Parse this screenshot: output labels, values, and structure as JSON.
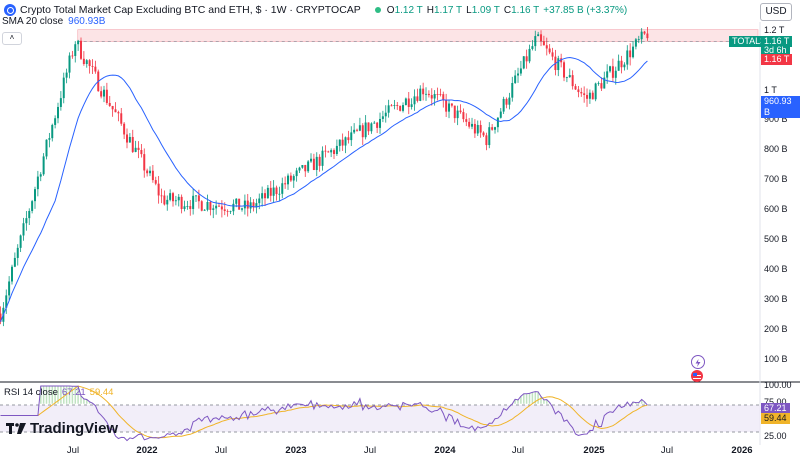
{
  "header": {
    "title": "Crypto Total Market Cap Excluding BTC and ETH, $ · 1W · CRYPTOCAP",
    "ohlc": [
      {
        "key": "O",
        "value": "1.12 T"
      },
      {
        "key": "H",
        "value": "1.17 T"
      },
      {
        "key": "L",
        "value": "1.09 T"
      },
      {
        "key": "C",
        "value": "1.16 T"
      }
    ],
    "change": "+37.85 B (+3.37%)",
    "currency_button": "USD"
  },
  "sma": {
    "label": "SMA 20 close",
    "value": "960.93B"
  },
  "collapse_button": "˄",
  "price_axis": [
    "1.2 T",
    "1 T",
    "900 B",
    "800 B",
    "700 B",
    "600 B",
    "500 B",
    "400 B",
    "300 B",
    "200 B",
    "100 B"
  ],
  "tags": {
    "symbol": "TOTAL3",
    "last": "1.16 T",
    "countdown": "3d 6h",
    "resistance": "1.16 T",
    "sma": "960.93 B",
    "rsi": "67.21",
    "rsi_ma": "59.44"
  },
  "rsi": {
    "label": "RSI 14 close",
    "value": "67.21",
    "ma_value": "59.44",
    "axis": [
      "100.00",
      "75.00",
      "25.00"
    ]
  },
  "time_axis": [
    {
      "label": "Jul",
      "year": false
    },
    {
      "label": "2022",
      "year": true
    },
    {
      "label": "Jul",
      "year": false
    },
    {
      "label": "2023",
      "year": true
    },
    {
      "label": "Jul",
      "year": false
    },
    {
      "label": "2024",
      "year": true
    },
    {
      "label": "Jul",
      "year": false
    },
    {
      "label": "2025",
      "year": true
    },
    {
      "label": "Jul",
      "year": false
    },
    {
      "label": "2026",
      "year": true
    }
  ],
  "branding": "TradingView",
  "colors": {
    "up": "#089981",
    "down": "#f23645",
    "sma": "#2962ff",
    "rsi": "#7e57c2",
    "rsi_ma": "#f0b429",
    "zone": "#fce4e6"
  },
  "chart_data": {
    "type": "candlestick",
    "timeframe": "1W",
    "y_scale": "log",
    "ylim_billions": [
      85,
      1250
    ],
    "resistance_zone_billions": [
      1080,
      1180
    ],
    "anchor_points_billions": [
      {
        "date": "2021-05",
        "close": 140
      },
      {
        "date": "2021-11",
        "close": 1080
      },
      {
        "date": "2022-06",
        "close": 330
      },
      {
        "date": "2023-01",
        "close": 310
      },
      {
        "date": "2024-03",
        "close": 760
      },
      {
        "date": "2024-08",
        "close": 520
      },
      {
        "date": "2024-12",
        "close": 1100
      },
      {
        "date": "2025-04",
        "close": 700
      },
      {
        "date": "2025-09",
        "close": 1160
      }
    ]
  }
}
